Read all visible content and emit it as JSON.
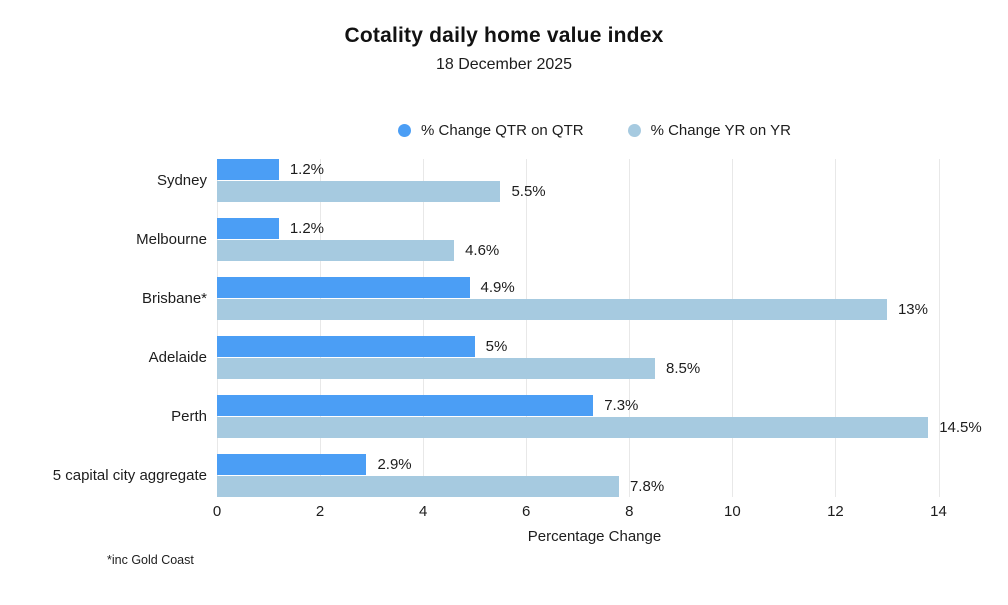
{
  "header": {
    "title": "Cotality daily home value index",
    "subtitle": "18 December 2025"
  },
  "chart_data": {
    "type": "bar",
    "orientation": "horizontal",
    "title": "Cotality daily home value index",
    "subtitle": "18 December 2025",
    "categories": [
      "Sydney",
      "Melbourne",
      "Brisbane*",
      "Adelaide",
      "Perth",
      "5 capital city aggregate"
    ],
    "series": [
      {
        "name": "% Change QTR on QTR",
        "color": "#4b9ef5",
        "values": [
          1.2,
          1.2,
          4.9,
          5,
          7.3,
          2.9
        ],
        "labels": [
          "1.2%",
          "1.2%",
          "4.9%",
          "5%",
          "7.3%",
          "2.9%"
        ]
      },
      {
        "name": "% Change YR on YR",
        "color": "#a6cae0",
        "values": [
          5.5,
          4.6,
          13,
          8.5,
          14.5,
          7.8
        ],
        "labels": [
          "5.5%",
          "4.6%",
          "13%",
          "8.5%",
          "14.5%",
          "7.8%"
        ]
      }
    ],
    "xlabel": "Percentage Change",
    "x_ticks": [
      0,
      2,
      4,
      6,
      8,
      10,
      12,
      14
    ],
    "xlim": [
      0,
      14.65
    ],
    "grid": "vertical",
    "legend_position": "top-center",
    "footnote": "*inc Gold Coast",
    "text_color": "#1d1d1d",
    "gridline_color": "#e8e8e8",
    "background_color": "#ffffff"
  }
}
